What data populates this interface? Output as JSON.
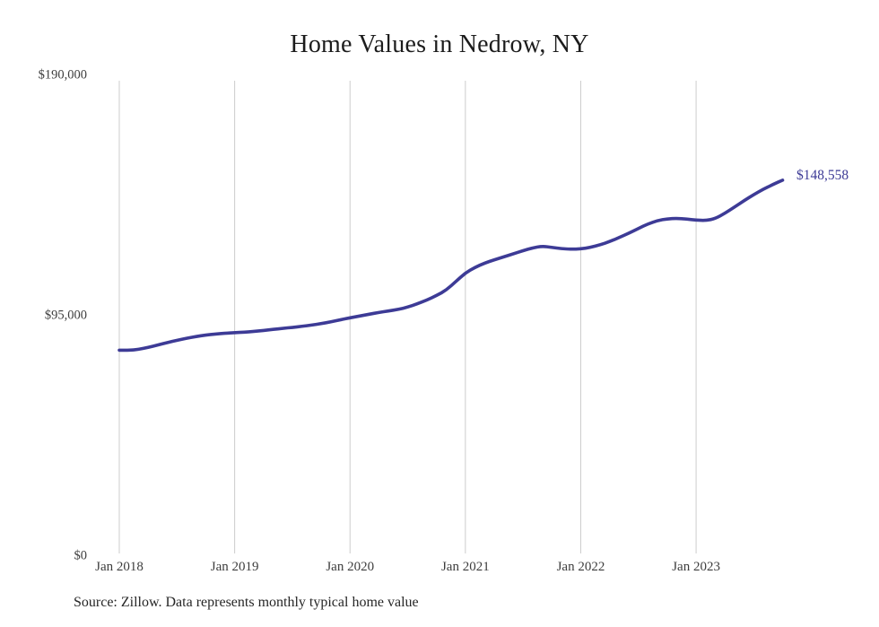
{
  "chart_data": {
    "type": "line",
    "title": "Home Values in Nedrow, NY",
    "series_name": "Monthly typical home value",
    "x_monthly_start": "2018-01",
    "x_monthly_end": "2023-10",
    "values": [
      81400,
      81300,
      81700,
      82500,
      83400,
      84400,
      85300,
      86100,
      86800,
      87400,
      87800,
      88100,
      88300,
      88500,
      88800,
      89200,
      89600,
      90000,
      90400,
      90800,
      91300,
      91900,
      92600,
      93400,
      94200,
      94900,
      95600,
      96300,
      96900,
      97500,
      98400,
      99700,
      101200,
      103000,
      105100,
      108500,
      111900,
      114100,
      115800,
      117100,
      118300,
      119500,
      120700,
      121800,
      122500,
      122000,
      121500,
      121300,
      121400,
      122000,
      123000,
      124300,
      125900,
      127600,
      129500,
      131300,
      132600,
      133300,
      133500,
      133200,
      132800,
      132600,
      133400,
      135500,
      138000,
      140500,
      142900,
      145000,
      146900,
      148558
    ],
    "end_label": "$148,558",
    "ylim": [
      0,
      190000
    ],
    "ytick_values": [
      0,
      95000,
      190000
    ],
    "ytick_labels": [
      "$0",
      "$95,000",
      "$190,000"
    ],
    "xtick_labels": [
      "Jan 2018",
      "Jan 2019",
      "Jan 2020",
      "Jan 2021",
      "Jan 2022",
      "Jan 2023"
    ],
    "grid": "vertical-only",
    "legend": "none",
    "line_color": "#3d3b96",
    "grid_color": "#cccccc"
  },
  "footer": {
    "source": "Source: Zillow. Data represents monthly typical home value"
  }
}
